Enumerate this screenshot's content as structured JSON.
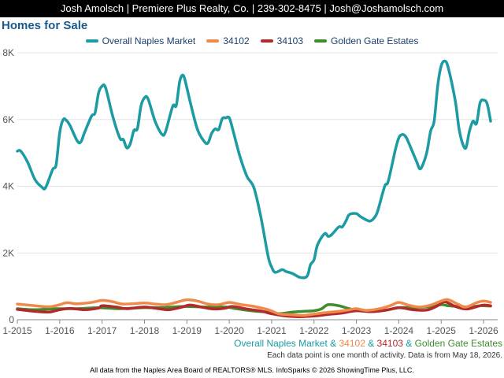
{
  "header": {
    "banner": "Josh Amolsch | Premiere Plus Realty, Co. | 239-302-8475 | Josh@Joshamolsch.com"
  },
  "colors": {
    "overall": "#1c9ba3",
    "z34102": "#f08a4b",
    "z34103": "#b22b2b",
    "golden_gate": "#3f8c2f",
    "title": "#1a5a8c"
  },
  "footer": {
    "legend_parts": [
      {
        "text": "Overall Naples Market",
        "color": "#1c9ba3"
      },
      {
        "text": " & ",
        "color": "#1c9ba3"
      },
      {
        "text": "34102",
        "color": "#f08a4b"
      },
      {
        "text": " & ",
        "color": "#1c9ba3"
      },
      {
        "text": "34103",
        "color": "#b22b2b"
      },
      {
        "text": " & ",
        "color": "#1c9ba3"
      },
      {
        "text": "Golden Gate Estates",
        "color": "#3f8c2f"
      }
    ],
    "note": "Each data point is one month of activity. Data is from May 18, 2026.",
    "credit": "All data from the Naples Area Board of REALTORS® MLS. InfoSparks © 2026 ShowingTime Plus, LLC."
  },
  "chart_data": {
    "type": "line",
    "title": "Homes for Sale",
    "xlabel": "",
    "ylabel": "",
    "x_range": [
      "2015-01",
      "2026-05"
    ],
    "x_ticks": [
      "1-2015",
      "1-2016",
      "1-2017",
      "1-2018",
      "1-2019",
      "1-2020",
      "1-2021",
      "1-2022",
      "1-2023",
      "1-2024",
      "1-2025",
      "1-2026"
    ],
    "ylim": [
      0,
      8000
    ],
    "y_ticks": [
      0,
      2000,
      4000,
      6000,
      8000
    ],
    "y_tick_labels": [
      "0",
      "2K",
      "4K",
      "6K",
      "8K"
    ],
    "grid": "horizontal",
    "legend_position": "top",
    "series": [
      {
        "name": "Overall Naples Market",
        "color": "#1c9ba3",
        "points": [
          [
            "2015-01",
            5050
          ],
          [
            "2015-02",
            5050
          ],
          [
            "2015-04",
            4700
          ],
          [
            "2015-06",
            4200
          ],
          [
            "2015-08",
            3970
          ],
          [
            "2015-09",
            3960
          ],
          [
            "2015-11",
            4500
          ],
          [
            "2015-12",
            4650
          ],
          [
            "2016-01",
            5600
          ],
          [
            "2016-02",
            6000
          ],
          [
            "2016-03",
            5960
          ],
          [
            "2016-04",
            5800
          ],
          [
            "2016-06",
            5350
          ],
          [
            "2016-07",
            5330
          ],
          [
            "2016-08",
            5600
          ],
          [
            "2016-10",
            6100
          ],
          [
            "2016-11",
            6200
          ],
          [
            "2016-12",
            6800
          ],
          [
            "2017-01",
            7000
          ],
          [
            "2017-02",
            6950
          ],
          [
            "2017-04",
            6100
          ],
          [
            "2017-06",
            5450
          ],
          [
            "2017-07",
            5400
          ],
          [
            "2017-08",
            5150
          ],
          [
            "2017-09",
            5280
          ],
          [
            "2017-10",
            5670
          ],
          [
            "2017-11",
            5730
          ],
          [
            "2017-12",
            6400
          ],
          [
            "2018-01",
            6650
          ],
          [
            "2018-02",
            6620
          ],
          [
            "2018-04",
            5950
          ],
          [
            "2018-06",
            5550
          ],
          [
            "2018-07",
            5650
          ],
          [
            "2018-09",
            6400
          ],
          [
            "2018-10",
            6420
          ],
          [
            "2018-11",
            7150
          ],
          [
            "2018-12",
            7320
          ],
          [
            "2019-01",
            6950
          ],
          [
            "2019-02",
            6500
          ],
          [
            "2019-04",
            5700
          ],
          [
            "2019-06",
            5330
          ],
          [
            "2019-07",
            5300
          ],
          [
            "2019-08",
            5580
          ],
          [
            "2019-09",
            5720
          ],
          [
            "2019-10",
            5700
          ],
          [
            "2019-11",
            6020
          ],
          [
            "2019-12",
            6050
          ],
          [
            "2020-01",
            6050
          ],
          [
            "2020-02",
            5700
          ],
          [
            "2020-04",
            4900
          ],
          [
            "2020-06",
            4300
          ],
          [
            "2020-08",
            3950
          ],
          [
            "2020-10",
            3050
          ],
          [
            "2020-12",
            1900
          ],
          [
            "2021-01",
            1580
          ],
          [
            "2021-02",
            1420
          ],
          [
            "2021-04",
            1500
          ],
          [
            "2021-05",
            1450
          ],
          [
            "2021-07",
            1380
          ],
          [
            "2021-09",
            1270
          ],
          [
            "2021-11",
            1300
          ],
          [
            "2021-12",
            1650
          ],
          [
            "2022-01",
            1800
          ],
          [
            "2022-02",
            2250
          ],
          [
            "2022-04",
            2580
          ],
          [
            "2022-05",
            2500
          ],
          [
            "2022-06",
            2550
          ],
          [
            "2022-08",
            2780
          ],
          [
            "2022-09",
            2780
          ],
          [
            "2022-10",
            2950
          ],
          [
            "2022-11",
            3150
          ],
          [
            "2023-01",
            3180
          ],
          [
            "2023-02",
            3100
          ],
          [
            "2023-04",
            2980
          ],
          [
            "2023-05",
            2960
          ],
          [
            "2023-06",
            3050
          ],
          [
            "2023-07",
            3250
          ],
          [
            "2023-09",
            4000
          ],
          [
            "2023-10",
            4150
          ],
          [
            "2023-12",
            5080
          ],
          [
            "2024-01",
            5450
          ],
          [
            "2024-02",
            5550
          ],
          [
            "2024-03",
            5480
          ],
          [
            "2024-04",
            5250
          ],
          [
            "2024-06",
            4750
          ],
          [
            "2024-07",
            4520
          ],
          [
            "2024-08",
            4700
          ],
          [
            "2024-09",
            5050
          ],
          [
            "2024-10",
            5650
          ],
          [
            "2024-11",
            5950
          ],
          [
            "2024-12",
            7000
          ],
          [
            "2025-01",
            7600
          ],
          [
            "2025-02",
            7750
          ],
          [
            "2025-03",
            7550
          ],
          [
            "2025-05",
            6550
          ],
          [
            "2025-06",
            5750
          ],
          [
            "2025-07",
            5300
          ],
          [
            "2025-08",
            5150
          ],
          [
            "2025-09",
            5650
          ],
          [
            "2025-10",
            5950
          ],
          [
            "2025-11",
            5880
          ],
          [
            "2025-12",
            6500
          ],
          [
            "2026-01",
            6580
          ],
          [
            "2026-02",
            6480
          ],
          [
            "2026-03",
            5950
          ]
        ]
      },
      {
        "name": "34102",
        "color": "#f08a4b",
        "points": [
          [
            "2015-01",
            470
          ],
          [
            "2015-06",
            420
          ],
          [
            "2015-10",
            390
          ],
          [
            "2016-01",
            450
          ],
          [
            "2016-03",
            510
          ],
          [
            "2016-06",
            480
          ],
          [
            "2016-10",
            520
          ],
          [
            "2017-01",
            580
          ],
          [
            "2017-04",
            540
          ],
          [
            "2017-07",
            470
          ],
          [
            "2018-01",
            500
          ],
          [
            "2018-04",
            470
          ],
          [
            "2018-07",
            450
          ],
          [
            "2018-10",
            520
          ],
          [
            "2019-01",
            600
          ],
          [
            "2019-04",
            560
          ],
          [
            "2019-07",
            470
          ],
          [
            "2019-10",
            450
          ],
          [
            "2020-01",
            520
          ],
          [
            "2020-04",
            460
          ],
          [
            "2020-08",
            400
          ],
          [
            "2020-12",
            300
          ],
          [
            "2021-03",
            180
          ],
          [
            "2021-06",
            150
          ],
          [
            "2021-10",
            130
          ],
          [
            "2022-01",
            170
          ],
          [
            "2022-04",
            210
          ],
          [
            "2022-08",
            250
          ],
          [
            "2022-11",
            300
          ],
          [
            "2023-01",
            330
          ],
          [
            "2023-04",
            280
          ],
          [
            "2023-08",
            340
          ],
          [
            "2023-11",
            440
          ],
          [
            "2024-01",
            520
          ],
          [
            "2024-04",
            430
          ],
          [
            "2024-07",
            380
          ],
          [
            "2024-10",
            440
          ],
          [
            "2025-01",
            560
          ],
          [
            "2025-03",
            600
          ],
          [
            "2025-06",
            450
          ],
          [
            "2025-08",
            380
          ],
          [
            "2025-11",
            510
          ],
          [
            "2026-01",
            560
          ],
          [
            "2026-03",
            520
          ]
        ]
      },
      {
        "name": "34103",
        "color": "#b22b2b",
        "points": [
          [
            "2015-01",
            310
          ],
          [
            "2015-06",
            250
          ],
          [
            "2015-10",
            230
          ],
          [
            "2016-01",
            300
          ],
          [
            "2016-04",
            340
          ],
          [
            "2016-08",
            300
          ],
          [
            "2016-12",
            350
          ],
          [
            "2017-01",
            420
          ],
          [
            "2017-05",
            380
          ],
          [
            "2017-08",
            330
          ],
          [
            "2018-01",
            380
          ],
          [
            "2018-05",
            330
          ],
          [
            "2018-08",
            300
          ],
          [
            "2018-12",
            390
          ],
          [
            "2019-02",
            440
          ],
          [
            "2019-06",
            360
          ],
          [
            "2019-09",
            320
          ],
          [
            "2019-12",
            350
          ],
          [
            "2020-02",
            400
          ],
          [
            "2020-06",
            320
          ],
          [
            "2020-10",
            260
          ],
          [
            "2021-01",
            180
          ],
          [
            "2021-05",
            110
          ],
          [
            "2021-09",
            90
          ],
          [
            "2022-01",
            110
          ],
          [
            "2022-05",
            160
          ],
          [
            "2022-09",
            200
          ],
          [
            "2023-01",
            270
          ],
          [
            "2023-05",
            240
          ],
          [
            "2023-09",
            280
          ],
          [
            "2024-01",
            360
          ],
          [
            "2024-05",
            300
          ],
          [
            "2024-09",
            290
          ],
          [
            "2024-12",
            420
          ],
          [
            "2025-02",
            540
          ],
          [
            "2025-05",
            400
          ],
          [
            "2025-08",
            320
          ],
          [
            "2025-11",
            390
          ],
          [
            "2026-01",
            440
          ],
          [
            "2026-03",
            420
          ]
        ]
      },
      {
        "name": "Golden Gate Estates",
        "color": "#3f8c2f",
        "points": [
          [
            "2015-01",
            330
          ],
          [
            "2015-06",
            300
          ],
          [
            "2015-12",
            330
          ],
          [
            "2016-06",
            330
          ],
          [
            "2016-12",
            360
          ],
          [
            "2017-06",
            330
          ],
          [
            "2017-12",
            360
          ],
          [
            "2018-06",
            360
          ],
          [
            "2018-12",
            400
          ],
          [
            "2019-06",
            380
          ],
          [
            "2019-12",
            380
          ],
          [
            "2020-03",
            330
          ],
          [
            "2020-08",
            260
          ],
          [
            "2020-12",
            230
          ],
          [
            "2021-03",
            180
          ],
          [
            "2021-07",
            230
          ],
          [
            "2021-10",
            250
          ],
          [
            "2022-01",
            270
          ],
          [
            "2022-03",
            320
          ],
          [
            "2022-05",
            450
          ],
          [
            "2022-08",
            420
          ],
          [
            "2022-11",
            330
          ],
          [
            "2023-02",
            270
          ],
          [
            "2023-06",
            260
          ],
          [
            "2023-10",
            300
          ],
          [
            "2024-01",
            360
          ],
          [
            "2024-05",
            370
          ],
          [
            "2024-09",
            380
          ],
          [
            "2025-01",
            450
          ],
          [
            "2025-03",
            420
          ],
          [
            "2025-06",
            400
          ],
          [
            "2025-09",
            380
          ],
          [
            "2025-12",
            420
          ],
          [
            "2026-03",
            410
          ]
        ]
      }
    ]
  }
}
